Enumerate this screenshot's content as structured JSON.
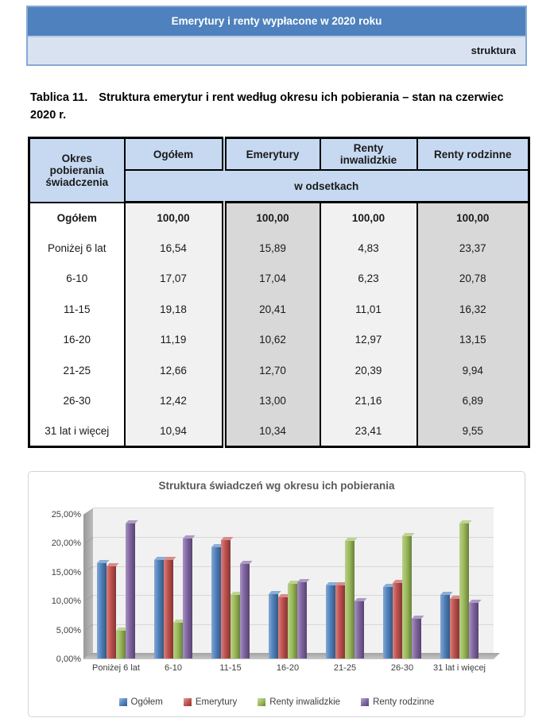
{
  "banner": {
    "title": "Emerytury i renty wypłacone w 2020 roku",
    "subtitle": "struktura"
  },
  "table_caption": {
    "label": "Tablica 11.",
    "text": "Struktura emerytur i rent według okresu ich pobierania – stan na czerwiec 2020 r."
  },
  "table": {
    "col0_header": "Okres pobierania świadczenia",
    "columns": [
      "Ogółem",
      "Emerytury",
      "Renty inwalidzkie",
      "Renty rodzinne"
    ],
    "units_row": "w odsetkach",
    "rows": [
      {
        "label": "Ogółem",
        "bold": true,
        "values": [
          "100,00",
          "100,00",
          "100,00",
          "100,00"
        ]
      },
      {
        "label": "Poniżej 6 lat",
        "bold": false,
        "values": [
          "16,54",
          "15,89",
          "4,83",
          "23,37"
        ]
      },
      {
        "label": "6-10",
        "bold": false,
        "values": [
          "17,07",
          "17,04",
          "6,23",
          "20,78"
        ]
      },
      {
        "label": "11-15",
        "bold": false,
        "values": [
          "19,18",
          "20,41",
          "11,01",
          "16,32"
        ]
      },
      {
        "label": "16-20",
        "bold": false,
        "values": [
          "11,19",
          "10,62",
          "12,97",
          "13,15"
        ]
      },
      {
        "label": "21-25",
        "bold": false,
        "values": [
          "12,66",
          "12,70",
          "20,39",
          "9,94"
        ]
      },
      {
        "label": "26-30",
        "bold": false,
        "values": [
          "12,42",
          "13,00",
          "21,16",
          "6,89"
        ]
      },
      {
        "label": "31 lat i więcej",
        "bold": false,
        "values": [
          "10,94",
          "10,34",
          "23,41",
          "9,55"
        ]
      }
    ]
  },
  "chart_data": {
    "type": "bar",
    "title": "Struktura świadczeń wg okresu ich pobierania",
    "categories": [
      "Poniżej 6 lat",
      "6-10",
      "11-15",
      "16-20",
      "21-25",
      "26-30",
      "31 lat i więcej"
    ],
    "series": [
      {
        "name": "Ogółem",
        "color": "#4F81BD",
        "values": [
          16.54,
          17.07,
          19.18,
          11.19,
          12.66,
          12.42,
          10.94
        ]
      },
      {
        "name": "Emerytury",
        "color": "#C0504D",
        "values": [
          15.89,
          17.04,
          20.41,
          10.62,
          12.7,
          13.0,
          10.34
        ]
      },
      {
        "name": "Renty inwalidzkie",
        "color": "#9BBB59",
        "values": [
          4.83,
          6.23,
          11.01,
          12.97,
          20.39,
          21.16,
          23.41
        ]
      },
      {
        "name": "Renty rodzinne",
        "color": "#8064A2",
        "values": [
          23.37,
          20.78,
          16.32,
          13.15,
          9.94,
          6.89,
          9.55
        ]
      }
    ],
    "y_ticks": [
      "25,00%",
      "20,00%",
      "15,00%",
      "10,00%",
      "5,00%",
      "0,00%"
    ],
    "ylim": [
      0,
      25
    ],
    "xlabel": "",
    "ylabel": "",
    "grid": true,
    "legend_position": "bottom",
    "style_3d": true
  }
}
